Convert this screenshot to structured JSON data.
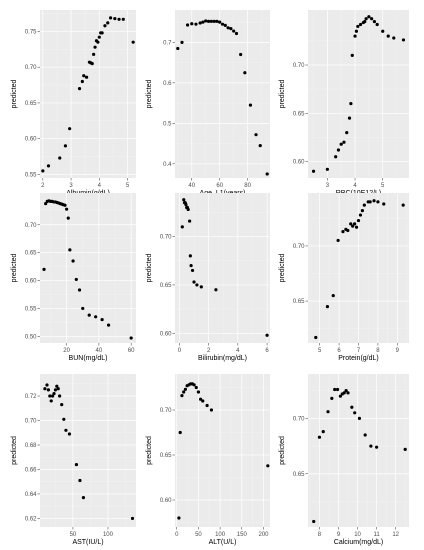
{
  "colors": {
    "panel_background": "#ebebeb",
    "grid": "#ffffff",
    "point": "#000000",
    "text": "#4d4d4d"
  },
  "chart_data": [
    {
      "type": "scatter",
      "title": "",
      "xlabel": "Albumin(g/dL)",
      "ylabel": "predicted",
      "xlim": [
        1.9,
        5.3
      ],
      "ylim": [
        0.545,
        0.78
      ],
      "grid": true,
      "legend": "none",
      "xticks": [
        2,
        3,
        4,
        5
      ],
      "yticks": [
        0.55,
        0.6,
        0.65,
        0.7,
        0.75
      ],
      "x": [
        2.0,
        2.2,
        2.6,
        2.8,
        2.95,
        3.3,
        3.4,
        3.45,
        3.55,
        3.65,
        3.7,
        3.75,
        3.8,
        3.85,
        3.9,
        3.95,
        4.0,
        4.05,
        4.1,
        4.2,
        4.3,
        4.4,
        4.55,
        4.7,
        4.85,
        5.2
      ],
      "y": [
        0.555,
        0.562,
        0.573,
        0.59,
        0.614,
        0.67,
        0.68,
        0.688,
        0.686,
        0.707,
        0.706,
        0.705,
        0.718,
        0.728,
        0.737,
        0.735,
        0.742,
        0.748,
        0.748,
        0.758,
        0.762,
        0.769,
        0.768,
        0.767,
        0.767,
        0.735
      ]
    },
    {
      "type": "scatter",
      "title": "",
      "xlabel": "Age_L1(years)",
      "ylabel": "predicted",
      "xlim": [
        28,
        96
      ],
      "ylim": [
        0.365,
        0.78
      ],
      "grid": true,
      "legend": "none",
      "xticks": [
        40,
        60,
        80
      ],
      "yticks": [
        0.4,
        0.5,
        0.6,
        0.7
      ],
      "x": [
        30,
        33,
        37,
        40,
        43,
        46,
        48,
        50,
        52,
        54,
        56,
        58,
        60,
        62,
        64,
        66,
        68,
        70,
        72,
        75,
        78,
        82,
        86,
        89,
        94
      ],
      "y": [
        0.685,
        0.7,
        0.743,
        0.746,
        0.745,
        0.748,
        0.75,
        0.753,
        0.752,
        0.752,
        0.752,
        0.752,
        0.75,
        0.745,
        0.742,
        0.736,
        0.734,
        0.728,
        0.722,
        0.67,
        0.625,
        0.545,
        0.472,
        0.445,
        0.375
      ]
    },
    {
      "type": "scatter",
      "title": "",
      "xlabel": "RBC(10E12/L)",
      "ylabel": "predicted",
      "xlim": [
        2.3,
        5.95
      ],
      "ylim": [
        0.583,
        0.757
      ],
      "grid": true,
      "legend": "none",
      "xticks": [
        3,
        4,
        5
      ],
      "yticks": [
        0.6,
        0.65,
        0.7
      ],
      "x": [
        2.5,
        3.0,
        3.3,
        3.4,
        3.5,
        3.6,
        3.7,
        3.8,
        3.85,
        3.9,
        4.0,
        4.05,
        4.1,
        4.2,
        4.3,
        4.35,
        4.4,
        4.5,
        4.6,
        4.7,
        4.8,
        5.0,
        5.2,
        5.4,
        5.75
      ],
      "y": [
        0.59,
        0.592,
        0.605,
        0.612,
        0.618,
        0.62,
        0.63,
        0.645,
        0.66,
        0.71,
        0.73,
        0.735,
        0.74,
        0.742,
        0.744,
        0.745,
        0.748,
        0.75,
        0.748,
        0.745,
        0.742,
        0.735,
        0.73,
        0.728,
        0.726
      ]
    },
    {
      "type": "scatter",
      "title": "",
      "xlabel": "BUN(mg/dL)",
      "ylabel": "predicted",
      "xlim": [
        3.5,
        63
      ],
      "ylim": [
        0.488,
        0.757
      ],
      "grid": true,
      "legend": "none",
      "xticks": [
        20,
        40,
        60
      ],
      "yticks": [
        0.5,
        0.55,
        0.6,
        0.65,
        0.7
      ],
      "x": [
        6,
        7,
        8,
        9,
        10,
        11,
        12,
        13,
        14,
        15,
        16,
        17,
        18,
        19,
        20,
        21,
        22,
        24,
        26,
        28,
        30,
        34,
        38,
        42,
        46,
        60
      ],
      "y": [
        0.62,
        0.738,
        0.742,
        0.743,
        0.742,
        0.742,
        0.741,
        0.741,
        0.74,
        0.739,
        0.738,
        0.737,
        0.736,
        0.735,
        0.728,
        0.712,
        0.655,
        0.635,
        0.602,
        0.583,
        0.55,
        0.538,
        0.535,
        0.53,
        0.52,
        0.497
      ]
    },
    {
      "type": "scatter",
      "title": "",
      "xlabel": "Bilirubin(mg/dL)",
      "ylabel": "predicted",
      "xlim": [
        -0.3,
        6.2
      ],
      "ylim": [
        0.59,
        0.745
      ],
      "grid": true,
      "legend": "none",
      "xticks": [
        0,
        2,
        4,
        6
      ],
      "yticks": [
        0.6,
        0.65,
        0.7
      ],
      "x": [
        0.2,
        0.3,
        0.35,
        0.4,
        0.45,
        0.5,
        0.55,
        0.6,
        0.7,
        0.75,
        0.8,
        0.9,
        1.0,
        1.2,
        1.5,
        2.5,
        6.0
      ],
      "y": [
        0.71,
        0.738,
        0.735,
        0.735,
        0.733,
        0.73,
        0.73,
        0.728,
        0.716,
        0.68,
        0.67,
        0.665,
        0.653,
        0.65,
        0.648,
        0.645,
        0.598
      ]
    },
    {
      "type": "scatter",
      "title": "",
      "xlabel": "Protein(g/dL)",
      "ylabel": "predicted",
      "xlim": [
        4.4,
        9.6
      ],
      "ylim": [
        0.612,
        0.748
      ],
      "grid": true,
      "legend": "none",
      "xticks": [
        5,
        6,
        7,
        8,
        9
      ],
      "yticks": [
        0.65,
        0.7
      ],
      "x": [
        4.8,
        5.4,
        5.7,
        5.95,
        6.2,
        6.35,
        6.45,
        6.6,
        6.7,
        6.8,
        6.9,
        7.0,
        7.1,
        7.2,
        7.3,
        7.5,
        7.6,
        7.8,
        8.0,
        8.3,
        9.3
      ],
      "y": [
        0.617,
        0.645,
        0.655,
        0.705,
        0.713,
        0.715,
        0.714,
        0.72,
        0.718,
        0.72,
        0.717,
        0.723,
        0.728,
        0.732,
        0.737,
        0.74,
        0.74,
        0.741,
        0.74,
        0.738,
        0.737
      ]
    },
    {
      "type": "scatter",
      "title": "",
      "xlabel": "AST(IU/L)",
      "ylabel": "predicted",
      "xlim": [
        3,
        140
      ],
      "ylim": [
        0.613,
        0.738
      ],
      "grid": true,
      "legend": "none",
      "xticks": [
        50,
        100
      ],
      "yticks": [
        0.62,
        0.64,
        0.66,
        0.68,
        0.7,
        0.72
      ],
      "x": [
        10,
        13,
        15,
        17,
        19,
        21,
        23,
        25,
        27,
        29,
        31,
        34,
        37,
        40,
        45,
        55,
        60,
        65,
        135
      ],
      "y": [
        0.726,
        0.729,
        0.725,
        0.72,
        0.716,
        0.72,
        0.722,
        0.725,
        0.728,
        0.726,
        0.72,
        0.713,
        0.701,
        0.692,
        0.689,
        0.664,
        0.651,
        0.637,
        0.62
      ]
    },
    {
      "type": "scatter",
      "title": "",
      "xlabel": "ALT(U/L)",
      "ylabel": "predicted",
      "xlim": [
        -4,
        215
      ],
      "ylim": [
        0.57,
        0.74
      ],
      "grid": true,
      "legend": "none",
      "xticks": [
        0,
        50,
        100,
        150,
        200
      ],
      "yticks": [
        0.6,
        0.65,
        0.7
      ],
      "x": [
        5,
        8,
        12,
        16,
        20,
        24,
        28,
        32,
        36,
        40,
        45,
        50,
        55,
        60,
        70,
        80,
        210
      ],
      "y": [
        0.58,
        0.675,
        0.716,
        0.72,
        0.723,
        0.727,
        0.728,
        0.729,
        0.729,
        0.728,
        0.725,
        0.72,
        0.712,
        0.71,
        0.705,
        0.7,
        0.638
      ]
    },
    {
      "type": "scatter",
      "title": "",
      "xlabel": "Calcium(mg/dL)",
      "ylabel": "predicted",
      "xlim": [
        7.4,
        12.7
      ],
      "ylim": [
        0.602,
        0.74
      ],
      "grid": true,
      "legend": "none",
      "xticks": [
        8,
        9,
        10,
        11,
        12
      ],
      "yticks": [
        0.65,
        0.7
      ],
      "x": [
        7.7,
        8.0,
        8.2,
        8.45,
        8.65,
        8.8,
        8.95,
        9.1,
        9.2,
        9.3,
        9.4,
        9.5,
        9.7,
        9.85,
        10.1,
        10.4,
        10.7,
        11.0,
        12.5
      ],
      "y": [
        0.607,
        0.683,
        0.688,
        0.706,
        0.718,
        0.726,
        0.726,
        0.72,
        0.722,
        0.723,
        0.725,
        0.723,
        0.71,
        0.705,
        0.7,
        0.685,
        0.675,
        0.674,
        0.672
      ]
    }
  ]
}
